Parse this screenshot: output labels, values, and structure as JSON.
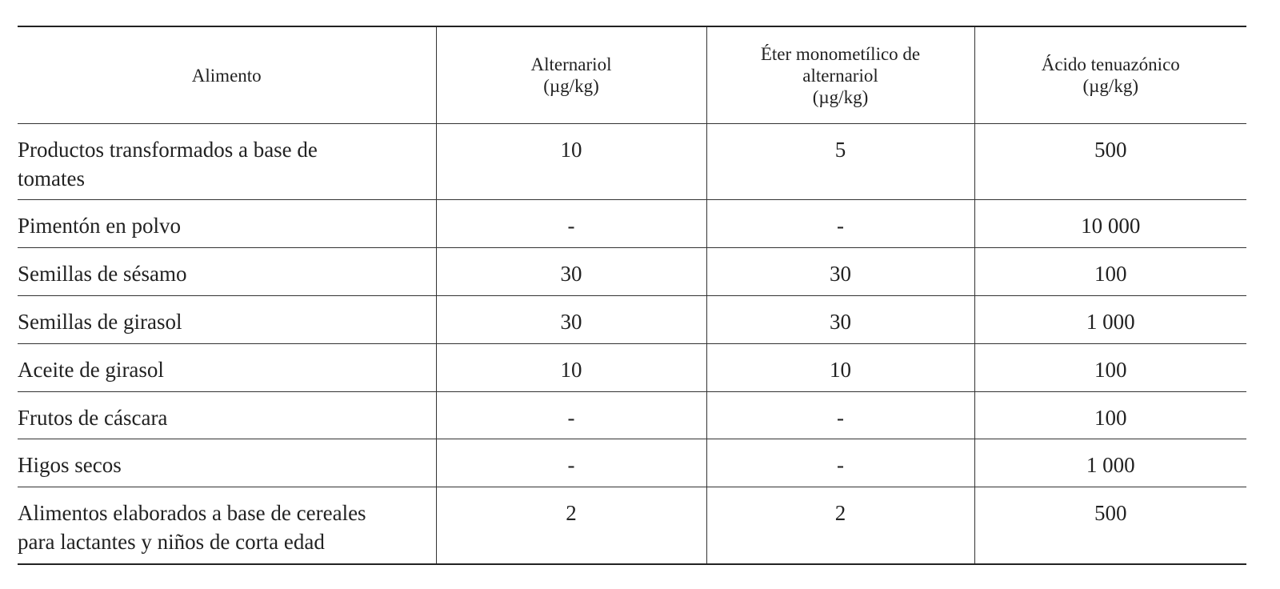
{
  "table": {
    "header": [
      [
        "Alimento"
      ],
      [
        "Alternariol",
        "(µg/kg)"
      ],
      [
        "Éter monometílico de",
        "alternariol",
        "(µg/kg)"
      ],
      [
        "Ácido tenuazónico",
        "(µg/kg)"
      ]
    ],
    "rows": [
      [
        [
          "Productos transformados a base de",
          "tomates"
        ],
        "10",
        "5",
        "500"
      ],
      [
        [
          "Pimentón en polvo"
        ],
        "-",
        "-",
        "10 000"
      ],
      [
        [
          "Semillas de sésamo"
        ],
        "30",
        "30",
        "100"
      ],
      [
        [
          "Semillas de girasol"
        ],
        "30",
        "30",
        "1 000"
      ],
      [
        [
          "Aceite de girasol"
        ],
        "10",
        "10",
        "100"
      ],
      [
        [
          "Frutos de cáscara"
        ],
        "-",
        "-",
        "100"
      ],
      [
        [
          "Higos secos"
        ],
        "-",
        "-",
        "1 000"
      ],
      [
        [
          "Alimentos elaborados a base de cereales",
          "para lactantes y niños de corta edad"
        ],
        "2",
        "2",
        "500"
      ]
    ]
  }
}
